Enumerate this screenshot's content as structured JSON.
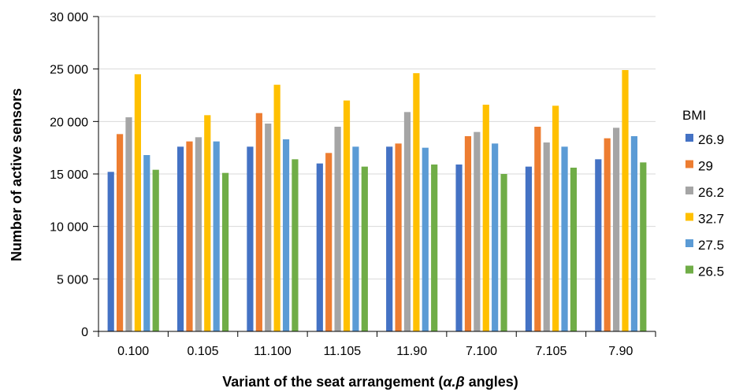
{
  "chart_data": {
    "type": "bar",
    "title": "",
    "xlabel_prefix": "Variant of the seat arrangement (",
    "xlabel_symbols": "α.β",
    "xlabel_suffix": " angles)",
    "ylabel": "Number of active sensors",
    "ylim": [
      0,
      30000
    ],
    "yticks": [
      0,
      5000,
      10000,
      15000,
      20000,
      25000,
      30000
    ],
    "ytick_labels": [
      "0",
      "5 000",
      "10 000",
      "15 000",
      "20 000",
      "25 000",
      "30 000"
    ],
    "grid": "horizontal",
    "legend_title": "BMI",
    "legend_position": "right",
    "categories": [
      "0.100",
      "0.105",
      "11.100",
      "11.105",
      "11.90",
      "7.100",
      "7.105",
      "7.90"
    ],
    "series": [
      {
        "name": "26.9",
        "color": "#4472C4",
        "values": [
          15200,
          17600,
          17600,
          16000,
          17600,
          15900,
          15700,
          16400
        ]
      },
      {
        "name": "29",
        "color": "#ED7D31",
        "values": [
          18800,
          18100,
          20800,
          17000,
          17900,
          18600,
          19500,
          18400
        ]
      },
      {
        "name": "26.2",
        "color": "#A5A5A5",
        "values": [
          20400,
          18500,
          19800,
          19500,
          20900,
          19000,
          18000,
          19400
        ]
      },
      {
        "name": "32.7",
        "color": "#FFC000",
        "values": [
          24500,
          20600,
          23500,
          22000,
          24600,
          21600,
          21500,
          24900
        ]
      },
      {
        "name": "27.5",
        "color": "#5B9BD5",
        "values": [
          16800,
          18100,
          18300,
          17600,
          17500,
          17900,
          17600,
          18600
        ]
      },
      {
        "name": "26.5",
        "color": "#70AD47",
        "values": [
          15400,
          15100,
          16400,
          15700,
          15900,
          15000,
          15600,
          16100
        ]
      }
    ]
  }
}
